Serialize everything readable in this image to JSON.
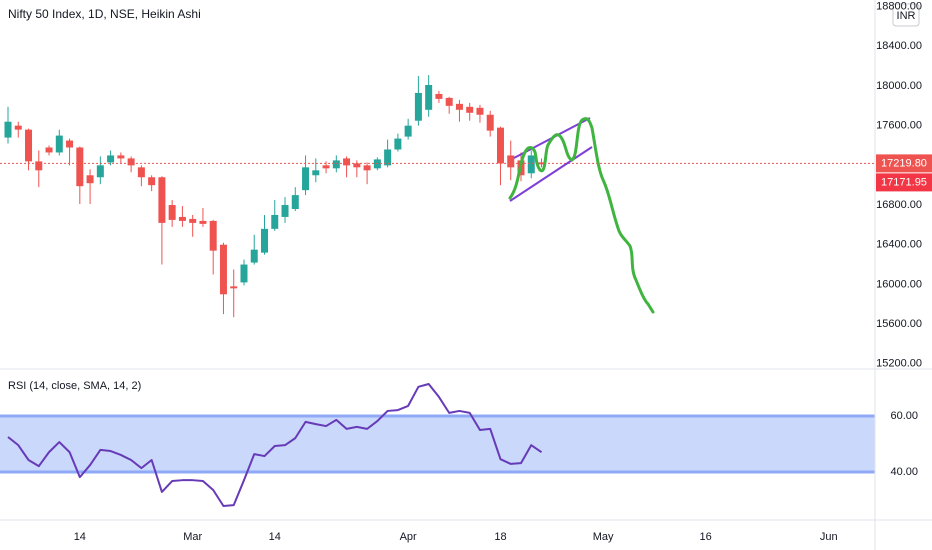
{
  "chart_data": [
    {
      "type": "candlestick",
      "title": "Nifty 50 Index, 1D, NSE, Heikin Ashi",
      "currency": "INR",
      "categories": [
        null,
        null,
        null,
        null,
        null,
        null,
        null,
        "14",
        null,
        null,
        null,
        null,
        null,
        null,
        null,
        null,
        null,
        null,
        "Mar",
        null,
        null,
        null,
        null,
        null,
        null,
        null,
        "14",
        null,
        null,
        null,
        null,
        null,
        null,
        null,
        null,
        null,
        null,
        null,
        null,
        "Apr",
        null,
        null,
        null,
        null,
        null,
        null,
        null,
        null,
        "18",
        null,
        null,
        null,
        null,
        null,
        null,
        null,
        null,
        null,
        "May",
        null,
        null,
        null,
        null,
        null,
        null,
        null,
        null,
        null,
        "16",
        null,
        null,
        null,
        null,
        null,
        null,
        null,
        null,
        null,
        null,
        null,
        "Jun",
        null,
        null,
        null
      ],
      "open": [
        17480,
        17600,
        17560,
        17240,
        17380,
        17330,
        17450,
        17380,
        17100,
        17080,
        17230,
        17300,
        17270,
        17180,
        17080,
        17080,
        16800,
        16680,
        16660,
        16640,
        16640,
        16400,
        15980,
        16020,
        16220,
        16320,
        16560,
        16680,
        16760,
        16950,
        17100,
        17200,
        17170,
        17270,
        17220,
        17200,
        17170,
        17200,
        17360,
        17490,
        17650,
        17760,
        17920,
        17880,
        17820,
        17790,
        17780,
        17710,
        17580,
        17300,
        17250,
        17120,
        17230,
        null,
        null,
        null,
        null,
        null,
        null,
        null,
        null,
        null,
        null,
        null,
        null,
        null,
        null,
        null,
        null,
        null,
        null,
        null,
        null,
        null,
        null,
        null,
        null,
        null,
        null,
        null,
        null,
        null,
        null,
        null
      ],
      "high": [
        17790,
        17640,
        17570,
        17350,
        17400,
        17560,
        17470,
        17390,
        17160,
        17290,
        17350,
        17330,
        17290,
        17200,
        17100,
        17090,
        16850,
        16790,
        16700,
        16770,
        16650,
        16420,
        16150,
        16250,
        16500,
        16700,
        16850,
        16880,
        16980,
        17300,
        17270,
        17240,
        17300,
        17290,
        17250,
        17230,
        17280,
        17460,
        17520,
        17670,
        18100,
        18110,
        17950,
        17890,
        17860,
        17830,
        17810,
        17750,
        17590,
        17450,
        17330,
        17350,
        17270,
        null,
        null,
        null,
        null,
        null,
        null,
        null,
        null,
        null,
        null,
        null,
        null,
        null,
        null,
        null,
        null,
        null,
        null,
        null,
        null,
        null,
        null,
        null,
        null,
        null,
        null,
        null,
        null,
        null,
        null,
        null
      ],
      "low": [
        17420,
        17480,
        17150,
        16980,
        17300,
        17300,
        17200,
        16810,
        16810,
        17010,
        17200,
        17220,
        17130,
        16990,
        16940,
        16200,
        16580,
        16580,
        16480,
        16580,
        16100,
        15700,
        15670,
        15990,
        16200,
        16300,
        16540,
        16620,
        16740,
        16900,
        17030,
        17120,
        17130,
        17080,
        17080,
        17010,
        17150,
        17180,
        17340,
        17460,
        17600,
        17690,
        17830,
        17720,
        17640,
        17650,
        17630,
        17490,
        17000,
        17050,
        17040,
        17070,
        17180,
        null,
        null,
        null,
        null,
        null,
        null,
        null,
        null,
        null,
        null,
        null,
        null,
        null,
        null,
        null,
        null,
        null,
        null,
        null,
        null,
        null,
        null,
        null,
        null,
        null,
        null,
        null,
        null,
        null,
        null,
        null
      ],
      "close": [
        17640,
        17560,
        17240,
        17150,
        17330,
        17500,
        17380,
        16990,
        17020,
        17200,
        17300,
        17270,
        17200,
        17080,
        17000,
        16620,
        16650,
        16640,
        16620,
        16610,
        16340,
        15900,
        15960,
        16200,
        16350,
        16560,
        16700,
        16800,
        16900,
        17180,
        17150,
        17170,
        17250,
        17200,
        17180,
        17150,
        17260,
        17360,
        17470,
        17600,
        17930,
        18010,
        17870,
        17800,
        17760,
        17730,
        17710,
        17550,
        17220,
        17180,
        17100,
        17300,
        17210,
        null,
        null,
        null,
        null,
        null,
        null,
        null,
        null,
        null,
        null,
        null,
        null,
        null,
        null,
        null,
        null,
        null,
        null,
        null,
        null,
        null,
        null,
        null,
        null,
        null,
        null,
        null,
        null,
        null,
        null,
        null
      ],
      "up_color": "#26a69a",
      "down_color": "#ef5350",
      "ylim": [
        15157,
        18867
      ],
      "yticks": [
        {
          "value": 18800,
          "label": "18800.00"
        },
        {
          "value": 18400,
          "label": "18400.00"
        },
        {
          "value": 18000,
          "label": "18000.00"
        },
        {
          "value": 17600,
          "label": "17600.00"
        },
        {
          "value": 16800,
          "label": "16800.00"
        },
        {
          "value": 16400,
          "label": "16400.00"
        },
        {
          "value": 16000,
          "label": "16000.00"
        },
        {
          "value": 15600,
          "label": "15600.00"
        },
        {
          "value": 15200,
          "label": "15200.00"
        }
      ],
      "price_labels": [
        {
          "value": 17219.8,
          "label": "17219.80",
          "color": "#ef5350"
        },
        {
          "value": 17171.95,
          "label": "17171.95",
          "color": "#f23645"
        }
      ]
    },
    {
      "type": "line",
      "title": "RSI (14, close, SMA, 14, 2)",
      "series": [
        {
          "color": "#673ab7",
          "values": [
            52.5,
            49.6,
            44.3,
            42.1,
            47.1,
            50.7,
            47.1,
            38.2,
            42.5,
            47.9,
            47.5,
            46.1,
            44.3,
            41.4,
            44.3,
            32.9,
            36.8,
            37.1,
            37.1,
            36.8,
            33.6,
            27.9,
            28.2,
            37.1,
            46.4,
            45.7,
            49.3,
            49.6,
            52.1,
            57.9,
            57.1,
            56.4,
            58.6,
            55.4,
            56.1,
            55.4,
            58.2,
            61.8,
            62.1,
            63.6,
            70.4,
            71.4,
            66.8,
            61.1,
            61.8,
            61.1,
            55.0,
            55.4,
            44.6,
            42.9,
            43.2,
            49.6,
            47.1,
            null,
            null,
            null,
            null,
            null,
            null,
            null,
            null,
            null,
            null,
            null,
            null,
            null,
            null,
            null,
            null,
            null,
            null,
            null,
            null,
            null,
            null,
            null,
            null,
            null,
            null,
            null,
            null,
            null,
            null,
            null
          ]
        }
      ],
      "band_color": "#c9d8fb",
      "band_line_color": "#8fa9f7",
      "ylim": [
        22.9,
        76.4
      ],
      "yticks": [
        {
          "value": 60,
          "label": "60.00"
        },
        {
          "value": 40,
          "label": "40.00"
        }
      ]
    }
  ]
}
